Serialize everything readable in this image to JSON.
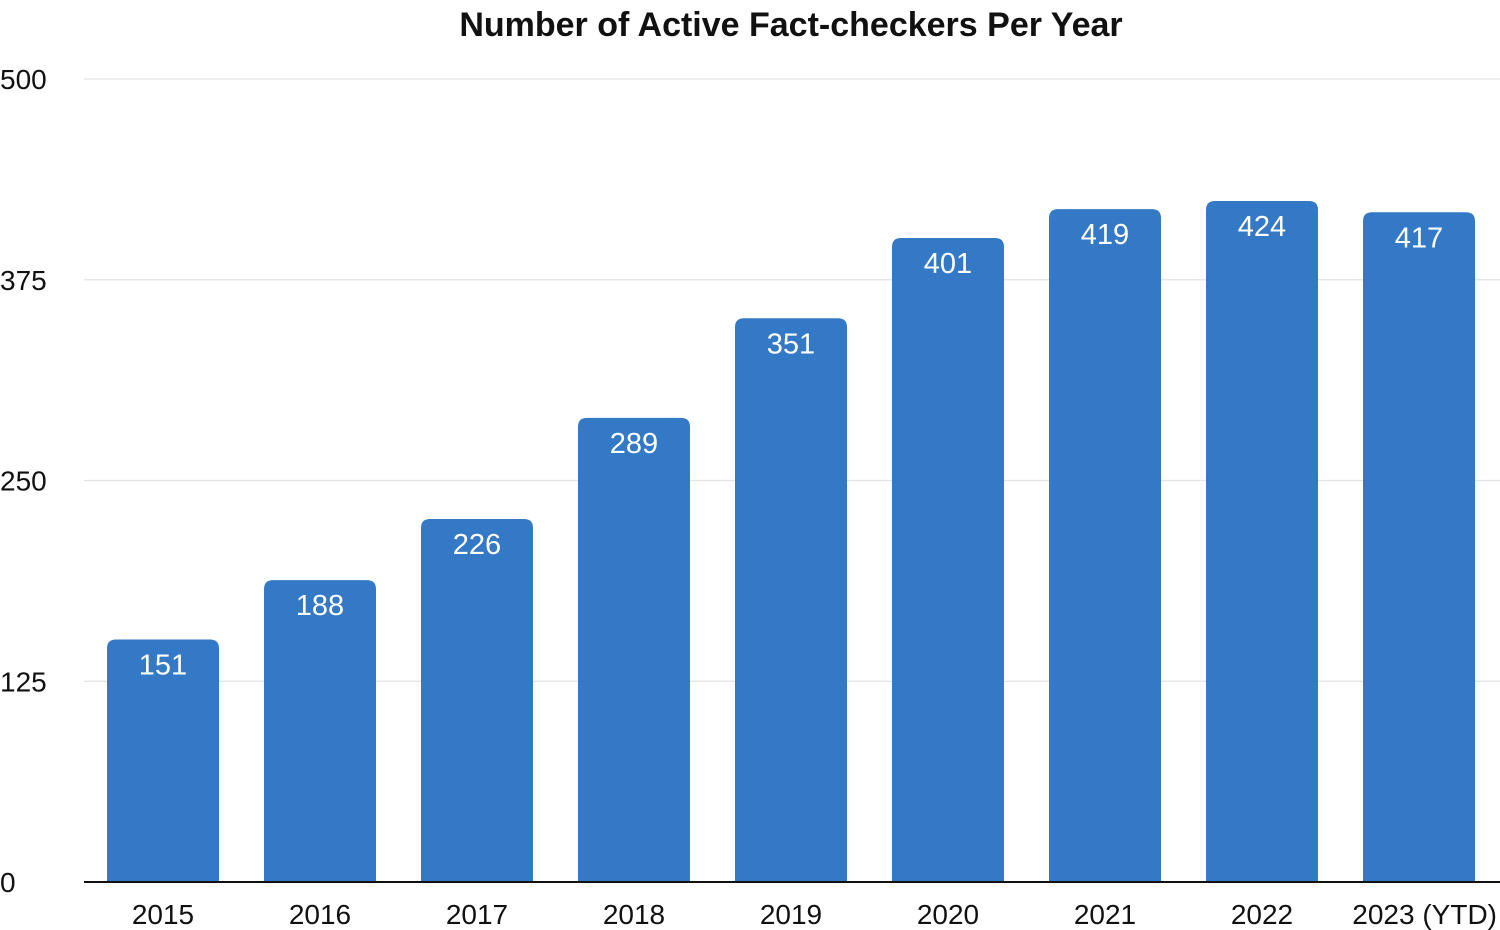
{
  "chart_data": {
    "type": "bar",
    "title": "Number of Active Fact-checkers Per Year",
    "xlabel": "",
    "ylabel": "",
    "categories": [
      "2015",
      "2016",
      "2017",
      "2018",
      "2019",
      "2020",
      "2021",
      "2022",
      "2023 (YTD)"
    ],
    "values": [
      151,
      188,
      226,
      289,
      351,
      401,
      419,
      424,
      417
    ],
    "data_labels": [
      "151",
      "188",
      "226",
      "289",
      "351",
      "401",
      "419",
      "424",
      "417"
    ],
    "ylim": [
      0,
      500
    ],
    "yticks": [
      0,
      125,
      250,
      375,
      500
    ],
    "ytick_labels": [
      "0",
      "125",
      "250",
      "375",
      "500"
    ],
    "grid": true,
    "legend": "none",
    "colors": {
      "bar": "#3479C6",
      "data_label": "#FFFFFF",
      "gridline": "#E3E3E3",
      "axis": "#111111",
      "text": "#111111"
    }
  }
}
